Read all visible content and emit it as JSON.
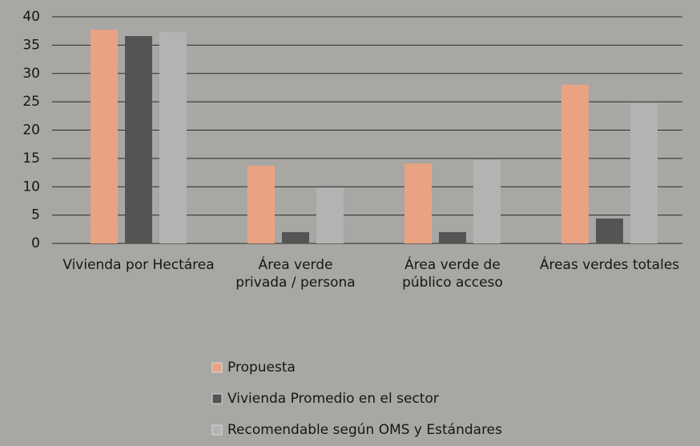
{
  "chart_data": {
    "type": "bar",
    "categories": [
      "Vivienda por Hectárea",
      "Área verde\nprivada / persona",
      "Área verde de\npúblico acceso",
      "Áreas verdes totales"
    ],
    "series": [
      {
        "name": "Propuesta",
        "color": "#e9a382",
        "values": [
          37.7,
          13.7,
          14.1,
          28
        ]
      },
      {
        "name": "Vivienda Promedio en el sector",
        "color": "#545454",
        "values": [
          36.6,
          2,
          2,
          4.4
        ]
      },
      {
        "name": "Recomendable según OMS y Estándares",
        "color": "#b3b3b3",
        "values": [
          37.3,
          9.8,
          14.7,
          24.7
        ]
      }
    ],
    "ylim": [
      0,
      40
    ],
    "yticks": [
      0,
      5,
      10,
      15,
      20,
      25,
      30,
      35,
      40
    ],
    "grid": true
  }
}
